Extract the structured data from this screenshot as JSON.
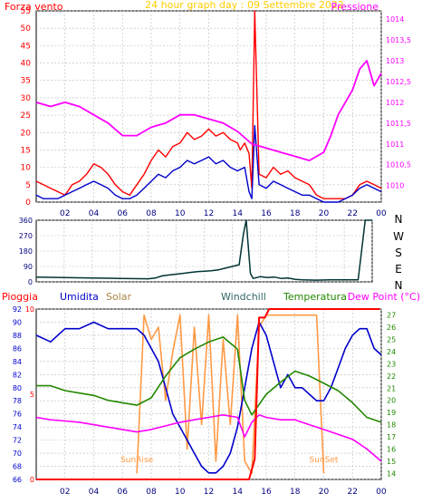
{
  "chart_data": [
    {
      "type": "line",
      "title": "24 hour graph day : 09 Settembre 2022",
      "left_label": "Forza vento",
      "right_label": "Pressione",
      "x_ticks": [
        "02",
        "04",
        "06",
        "08",
        "10",
        "12",
        "14",
        "16",
        "18",
        "20",
        "22",
        "00"
      ],
      "y_left_ticks": [
        "0",
        "5",
        "10",
        "15",
        "20",
        "25",
        "30",
        "35",
        "40",
        "45",
        "50",
        "55"
      ],
      "y_left_range": [
        0,
        55
      ],
      "y_right_ticks": [
        "1010",
        "1010,5",
        "1011",
        "1011,5",
        "1012",
        "1012,5",
        "1013",
        "1013,5",
        "1014"
      ],
      "y_right_range": [
        1009.6,
        1014.2
      ],
      "grid": true,
      "x_range": [
        0,
        24
      ],
      "series": [
        {
          "key": "gust",
          "color": "#ff0000",
          "x": [
            0,
            0.5,
            1,
            1.5,
            2,
            2.5,
            3,
            3.5,
            4,
            4.5,
            5,
            5.5,
            6,
            6.5,
            7,
            7.5,
            8,
            8.5,
            9,
            9.5,
            10,
            10.5,
            11,
            11.5,
            12,
            12.5,
            13,
            13.5,
            14,
            14.2,
            14.5,
            14.8,
            15,
            15.2,
            15.5,
            16,
            16.5,
            17,
            17.5,
            18,
            18.5,
            19,
            19.5,
            20,
            20.5,
            21,
            21.5,
            22,
            22.5,
            23,
            23.5,
            24
          ],
          "y": [
            6,
            5,
            4,
            3,
            2,
            5,
            6,
            8,
            11,
            10,
            8,
            5,
            3,
            2,
            5,
            8,
            12,
            15,
            13,
            16,
            17,
            20,
            18,
            19,
            21,
            19,
            20,
            18,
            17,
            15,
            17,
            14,
            4,
            55,
            8,
            7,
            10,
            8,
            9,
            7,
            6,
            5,
            2,
            1,
            1,
            1,
            1,
            2,
            5,
            6,
            5,
            4
          ]
        },
        {
          "key": "wind",
          "color": "#0000cc",
          "x": [
            0,
            0.5,
            1,
            1.5,
            2,
            2.5,
            3,
            3.5,
            4,
            4.5,
            5,
            5.5,
            6,
            6.5,
            7,
            7.5,
            8,
            8.5,
            9,
            9.5,
            10,
            10.5,
            11,
            11.5,
            12,
            12.5,
            13,
            13.5,
            14,
            14.5,
            14.8,
            15,
            15.2,
            15.5,
            16,
            16.5,
            17,
            17.5,
            18,
            18.5,
            19,
            19.5,
            20,
            20.5,
            21,
            21.5,
            22,
            22.5,
            23,
            23.5,
            24
          ],
          "y": [
            2,
            1,
            1,
            1,
            2,
            3,
            4,
            5,
            6,
            5,
            4,
            2,
            1,
            1,
            2,
            4,
            6,
            8,
            7,
            9,
            10,
            12,
            11,
            12,
            13,
            11,
            12,
            10,
            9,
            10,
            3,
            1,
            22,
            5,
            4,
            6,
            5,
            4,
            3,
            2,
            2,
            1,
            0,
            0,
            0,
            1,
            2,
            4,
            5,
            4,
            3
          ]
        },
        {
          "key": "pressure",
          "axis": "right",
          "color": "#ff00ff",
          "x": [
            0,
            1,
            2,
            3,
            4,
            5,
            6,
            7,
            8,
            9,
            10,
            11,
            12,
            13,
            14,
            15,
            16,
            17,
            18,
            19,
            20,
            20.5,
            21,
            22,
            22.5,
            23,
            23.5,
            24
          ],
          "y": [
            1012.0,
            1011.9,
            1012.0,
            1011.9,
            1011.7,
            1011.5,
            1011.2,
            1011.2,
            1011.4,
            1011.5,
            1011.7,
            1011.7,
            1011.6,
            1011.5,
            1011.3,
            1011.0,
            1010.9,
            1010.8,
            1010.7,
            1010.6,
            1010.8,
            1011.2,
            1011.7,
            1012.3,
            1012.8,
            1013.0,
            1012.4,
            1012.7
          ]
        }
      ]
    },
    {
      "type": "line",
      "x_range": [
        0,
        24
      ],
      "y_ticks": [
        "0",
        "90",
        "180",
        "270",
        "360"
      ],
      "y_range": [
        0,
        360
      ],
      "compass_labels": [
        "N",
        "W",
        "S",
        "E",
        "N"
      ],
      "grid": true,
      "series": [
        {
          "key": "direction",
          "color": "#003333",
          "x": [
            0,
            2,
            4,
            6,
            8,
            8.5,
            9,
            9.5,
            10,
            10.5,
            11,
            11.5,
            12,
            12.5,
            13,
            13.5,
            14,
            14.5,
            14.8,
            15,
            15.3,
            15.5,
            16,
            16.5,
            17,
            17.5,
            18,
            18.5,
            19,
            20,
            21,
            22,
            23,
            23.5,
            24
          ],
          "y": [
            28,
            25,
            22,
            20,
            18,
            22,
            35,
            40,
            45,
            50,
            55,
            60,
            62,
            65,
            70,
            80,
            90,
            100,
            280,
            360,
            50,
            20,
            30,
            25,
            28,
            20,
            22,
            15,
            12,
            10,
            12,
            12,
            12,
            360,
            360
          ]
        }
      ]
    },
    {
      "type": "line",
      "labels": [
        "Pioggia",
        "Umidita",
        "Solar",
        "Windchill",
        "Temperatura",
        "Dew Point (°C)"
      ],
      "x_ticks": [
        "02",
        "04",
        "06",
        "08",
        "10",
        "12",
        "14",
        "16",
        "18",
        "20",
        "22",
        "00"
      ],
      "y_humidity_ticks": [
        "66",
        "68",
        "70",
        "72",
        "74",
        "76",
        "78",
        "80",
        "82",
        "84",
        "86",
        "88",
        "90",
        "92"
      ],
      "y_humidity_range": [
        66,
        92
      ],
      "y_rain_ticks": [
        "0",
        "5",
        "10"
      ],
      "y_rain_range": [
        0,
        10
      ],
      "y_temp_ticks": [
        "14",
        "15",
        "16",
        "17",
        "18",
        "19",
        "20",
        "21",
        "22",
        "23",
        "24",
        "25",
        "26",
        "27"
      ],
      "y_temp_range": [
        13.5,
        27.5
      ],
      "annotations": [
        {
          "text": "SunRise",
          "x": 7.0
        },
        {
          "text": "SunSet",
          "x": 20.0
        }
      ],
      "x_range": [
        0,
        24
      ],
      "grid": true,
      "series": [
        {
          "key": "solar",
          "axis": "temp",
          "color": "#ff9944",
          "x": [
            7,
            7.5,
            8,
            8.5,
            9,
            9.5,
            10,
            10.5,
            11,
            11.5,
            12,
            12.5,
            13,
            13.5,
            14,
            14.5,
            15,
            15.5,
            16,
            17,
            18,
            19,
            19.5,
            20
          ],
          "y": [
            14,
            27,
            25,
            26,
            20,
            24,
            27,
            16,
            26,
            18,
            27,
            15,
            25,
            18,
            27,
            15,
            14,
            26,
            27,
            27,
            27,
            27,
            27,
            14
          ]
        },
        {
          "key": "humidity",
          "axis": "humidity",
          "color": "#0000cc",
          "x": [
            0,
            1,
            2,
            3,
            4,
            5,
            6,
            7,
            7.5,
            8,
            8.5,
            9,
            9.5,
            10,
            10.5,
            11,
            11.5,
            12,
            12.5,
            13,
            13.5,
            14,
            14.5,
            15,
            15.5,
            16,
            16.5,
            17,
            17.5,
            18,
            18.5,
            19,
            19.5,
            20,
            20.5,
            21,
            21.5,
            22,
            22.5,
            23,
            23.5,
            24
          ],
          "y": [
            88,
            87,
            89,
            89,
            90,
            89,
            89,
            89,
            88,
            86,
            84,
            80,
            76,
            74,
            72,
            70,
            68,
            67,
            67,
            68,
            70,
            74,
            80,
            86,
            90,
            88,
            84,
            80,
            82,
            80,
            80,
            79,
            78,
            78,
            80,
            83,
            86,
            88,
            89,
            89,
            86,
            85
          ]
        },
        {
          "key": "temperature",
          "axis": "temp",
          "color": "#228800",
          "x": [
            0,
            1,
            2,
            3,
            4,
            5,
            6,
            7,
            8,
            9,
            10,
            11,
            12,
            13,
            14,
            14.5,
            15,
            16,
            17,
            18,
            19,
            20,
            21,
            22,
            23,
            24
          ],
          "y": [
            21.2,
            21.2,
            20.8,
            20.6,
            20.4,
            20.0,
            19.8,
            19.6,
            20.2,
            22.0,
            23.5,
            24.2,
            24.8,
            25.2,
            24.2,
            20.0,
            18.8,
            20.5,
            21.5,
            22.4,
            22.0,
            21.4,
            20.8,
            19.8,
            18.6,
            18.2
          ]
        },
        {
          "key": "dewpoint",
          "axis": "temp",
          "color": "#ff00ff",
          "x": [
            0,
            1,
            2,
            3,
            4,
            5,
            6,
            7,
            8,
            9,
            10,
            11,
            12,
            13,
            14,
            14.5,
            15,
            15.5,
            16,
            17,
            18,
            19,
            20,
            21,
            22,
            23,
            24
          ],
          "y": [
            18.6,
            18.4,
            18.3,
            18.2,
            18.0,
            17.8,
            17.6,
            17.4,
            17.6,
            17.9,
            18.2,
            18.4,
            18.6,
            18.8,
            18.6,
            17.0,
            18.2,
            18.8,
            18.6,
            18.4,
            18.4,
            18.0,
            17.6,
            17.2,
            16.8,
            16.0,
            15.0
          ]
        },
        {
          "key": "rain",
          "axis": "rain",
          "color": "#ff0000",
          "x": [
            0,
            14.8,
            15.2,
            15.5,
            15.9,
            16.2,
            23.9
          ],
          "y": [
            0,
            0,
            1.2,
            9.5,
            9.5,
            10,
            10
          ]
        }
      ]
    }
  ]
}
